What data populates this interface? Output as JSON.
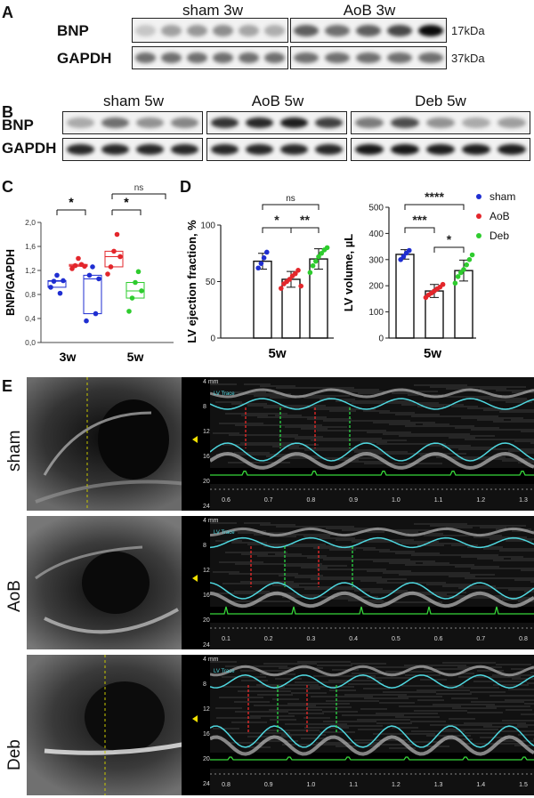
{
  "panel_letters": {
    "a": "A",
    "b": "B",
    "c": "C",
    "d": "D",
    "e": "E"
  },
  "panel_a": {
    "groups": [
      "sham 3w",
      "AoB 3w"
    ],
    "rows": [
      "BNP",
      "GAPDH"
    ],
    "sizes": [
      "17kDa",
      "37kDa"
    ],
    "bnp_intensity": [
      0.18,
      0.34,
      0.38,
      0.42,
      0.32,
      0.28,
      0.62,
      0.55,
      0.62,
      0.72,
      0.98
    ],
    "gapdh_intensity": [
      0.55,
      0.55,
      0.55,
      0.55,
      0.55,
      0.55,
      0.55,
      0.55,
      0.55,
      0.55,
      0.55
    ]
  },
  "panel_b": {
    "groups": [
      "sham 5w",
      "AoB 5w",
      "Deb 5w"
    ],
    "rows": [
      "BNP",
      "GAPDH"
    ],
    "bnp_intensity": [
      0.3,
      0.55,
      0.4,
      0.45,
      0.8,
      0.85,
      0.9,
      0.75,
      0.5,
      0.7,
      0.4,
      0.3,
      0.35
    ],
    "gapdh_intensity": [
      0.85,
      0.85,
      0.85,
      0.85,
      0.85,
      0.85,
      0.85,
      0.85,
      0.92,
      0.92,
      0.9,
      0.9,
      0.9
    ]
  },
  "chart_data": [
    {
      "type": "scatter",
      "title": "",
      "ylabel": "BNP/GAPDH",
      "ylim": [
        0,
        2.0
      ],
      "yticks": [
        "0,0",
        "0,4",
        "0,8",
        "1,2",
        "1,6",
        "2,0"
      ],
      "categories": [
        "3w",
        "5w"
      ],
      "series": [
        {
          "name": "sham 3w",
          "color": "#1f2ed1",
          "values": [
            0.92,
            1.02,
            1.12,
            0.82,
            1.03
          ]
        },
        {
          "name": "AoB 3w",
          "color": "#e3262b",
          "values": [
            1.23,
            1.28,
            1.4,
            1.3,
            1.27
          ]
        },
        {
          "name": "sham 5w",
          "color": "#1f2ed1",
          "values": [
            0.36,
            1.12,
            1.26,
            0.48,
            1.06
          ]
        },
        {
          "name": "AoB 5w",
          "color": "#e3262b",
          "values": [
            1.14,
            1.26,
            1.52,
            1.8,
            1.43
          ]
        },
        {
          "name": "Deb 5w",
          "color": "#2ecc2e",
          "values": [
            0.52,
            0.74,
            1.0,
            1.18,
            0.86
          ]
        }
      ],
      "annotations": [
        "*",
        "*",
        "ns"
      ]
    },
    {
      "type": "bar",
      "ylabel": "LV ejection fraction, %",
      "ylim": [
        0,
        100
      ],
      "yticks": [
        "0",
        "50",
        "100"
      ],
      "xlabel": "5w",
      "categories": [
        "sham",
        "AoB",
        "Deb"
      ],
      "values": [
        68,
        52,
        70
      ],
      "errors": [
        7,
        7,
        9
      ],
      "points": [
        [
          62,
          66,
          71,
          76
        ],
        [
          44,
          48,
          50,
          52,
          55,
          57,
          60,
          46
        ],
        [
          58,
          64,
          68,
          72,
          75,
          78,
          80
        ]
      ],
      "annotations": [
        "*",
        "**",
        "ns"
      ]
    },
    {
      "type": "bar",
      "ylabel": "LV volume, µL",
      "ylim": [
        0,
        500
      ],
      "yticks": [
        "0",
        "100",
        "200",
        "300",
        "400",
        "500"
      ],
      "xlabel": "5w",
      "categories": [
        "sham",
        "AoB",
        "Deb"
      ],
      "values": [
        320,
        180,
        258
      ],
      "errors": [
        18,
        25,
        40
      ],
      "points": [
        [
          300,
          312,
          325,
          335
        ],
        [
          155,
          165,
          172,
          180,
          188,
          195,
          205
        ],
        [
          210,
          235,
          250,
          262,
          280,
          300,
          318
        ]
      ],
      "annotations": [
        "****",
        "***",
        "*"
      ]
    }
  ],
  "legend": [
    {
      "name": "sham",
      "color": "#1f2ed1"
    },
    {
      "name": "AoB",
      "color": "#e3262b"
    },
    {
      "name": "Deb",
      "color": "#2ecc2e"
    }
  ],
  "panel_e": {
    "conditions": [
      "sham",
      "AoB",
      "Deb"
    ],
    "depth_ticks": [
      "4 mm",
      "8",
      "12",
      "16",
      "20",
      "24"
    ],
    "time_axes": [
      [
        "0.6",
        "0.7",
        "0.8",
        "0.9",
        "1.0",
        "1.1",
        "1.2",
        "1.3"
      ],
      [
        "0.1",
        "0.2",
        "0.3",
        "0.4",
        "0.5",
        "0.6",
        "0.7",
        "0.8"
      ],
      [
        "0.8",
        "0.9",
        "1.0",
        "1.1",
        "1.2",
        "1.3",
        "1.4",
        "1.5"
      ]
    ],
    "measure_overlay": "LV Trace"
  }
}
